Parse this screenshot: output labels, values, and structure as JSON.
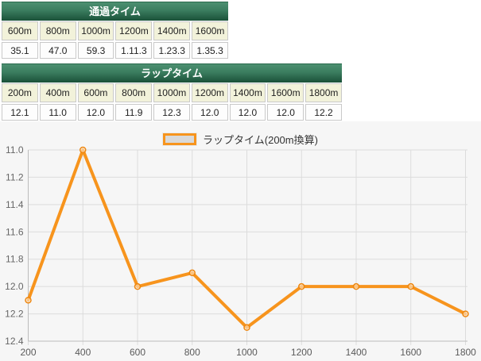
{
  "pass_table": {
    "title": "通過タイム",
    "headers": [
      "600m",
      "800m",
      "1000m",
      "1200m",
      "1400m",
      "1600m"
    ],
    "values": [
      "35.1",
      "47.0",
      "59.3",
      "1.11.3",
      "1.23.3",
      "1.35.3"
    ]
  },
  "lap_table": {
    "title": "ラップタイム",
    "headers": [
      "200m",
      "400m",
      "600m",
      "800m",
      "1000m",
      "1200m",
      "1400m",
      "1600m",
      "1800m"
    ],
    "values": [
      "12.1",
      "11.0",
      "12.0",
      "11.9",
      "12.3",
      "12.0",
      "12.0",
      "12.0",
      "12.2"
    ]
  },
  "chart_data": {
    "type": "line",
    "legend": "ラップタイム(200m換算)",
    "legend_position": "top-center",
    "x": [
      200,
      400,
      600,
      800,
      1000,
      1200,
      1400,
      1600,
      1800
    ],
    "values": [
      12.1,
      11.0,
      12.0,
      11.9,
      12.3,
      12.0,
      12.0,
      12.0,
      12.2
    ],
    "x_tick_labels": [
      "200",
      "400",
      "600",
      "800",
      "1000",
      "1200",
      "1400",
      "1600",
      "1800"
    ],
    "y_ticks": [
      11.0,
      11.2,
      11.4,
      11.6,
      11.8,
      12.0,
      12.2,
      12.4
    ],
    "ylim": [
      11.0,
      12.4
    ],
    "y_inverted": true,
    "grid": true,
    "xlabel": "",
    "ylabel": ""
  },
  "colors": {
    "line_orange": "#f7941d",
    "marker_edge": "#ee860e",
    "header_green_top": "#4c9071",
    "header_green_bottom": "#1a5138",
    "header_cell_bg": "#f2f2da",
    "chart_bg": "#f6f6f6",
    "gridline": "#dcdcdc",
    "axis": "#bcbcbc",
    "tick_text": "#666666"
  }
}
